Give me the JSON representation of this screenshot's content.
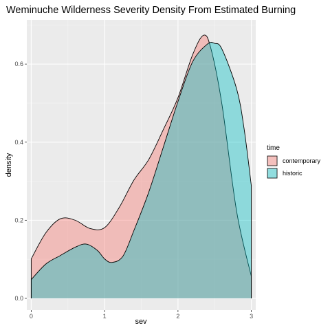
{
  "chart_data": {
    "type": "area",
    "title": "Weminuche Wilderness Severity Density From Estimated Burning",
    "xlabel": "sev",
    "ylabel": "density",
    "xlim": [
      -0.06,
      3.06
    ],
    "ylim": [
      -0.03,
      0.713
    ],
    "x_ticks": [
      0,
      1,
      2,
      3
    ],
    "x_tick_labels": [
      "0",
      "1",
      "2",
      "3"
    ],
    "y_ticks": [
      0.0,
      0.2,
      0.4,
      0.6
    ],
    "y_tick_labels": [
      "0.0",
      "0.2",
      "0.4",
      "0.6"
    ],
    "grid": true,
    "legend": {
      "title": "time",
      "position": "right"
    },
    "series": [
      {
        "name": "contemporary",
        "color": "#F8766D",
        "points": [
          [
            0,
            0.101
          ],
          [
            0.2,
            0.168
          ],
          [
            0.4,
            0.204
          ],
          [
            0.6,
            0.2
          ],
          [
            0.8,
            0.179
          ],
          [
            1.0,
            0.181
          ],
          [
            1.2,
            0.233
          ],
          [
            1.4,
            0.303
          ],
          [
            1.6,
            0.355
          ],
          [
            1.8,
            0.432
          ],
          [
            2.0,
            0.514
          ],
          [
            2.2,
            0.624
          ],
          [
            2.35,
            0.674
          ],
          [
            2.45,
            0.639
          ],
          [
            2.6,
            0.496
          ],
          [
            2.8,
            0.222
          ],
          [
            3.0,
            0.056
          ]
        ]
      },
      {
        "name": "historic",
        "color": "#00BFC4",
        "points": [
          [
            0,
            0.048
          ],
          [
            0.2,
            0.088
          ],
          [
            0.4,
            0.11
          ],
          [
            0.6,
            0.131
          ],
          [
            0.75,
            0.139
          ],
          [
            0.9,
            0.123
          ],
          [
            1.0,
            0.101
          ],
          [
            1.1,
            0.092
          ],
          [
            1.25,
            0.108
          ],
          [
            1.4,
            0.174
          ],
          [
            1.6,
            0.271
          ],
          [
            1.8,
            0.387
          ],
          [
            2.0,
            0.504
          ],
          [
            2.2,
            0.606
          ],
          [
            2.4,
            0.651
          ],
          [
            2.5,
            0.653
          ],
          [
            2.6,
            0.638
          ],
          [
            2.8,
            0.536
          ],
          [
            2.9,
            0.436
          ],
          [
            3.0,
            0.288
          ]
        ]
      }
    ]
  }
}
